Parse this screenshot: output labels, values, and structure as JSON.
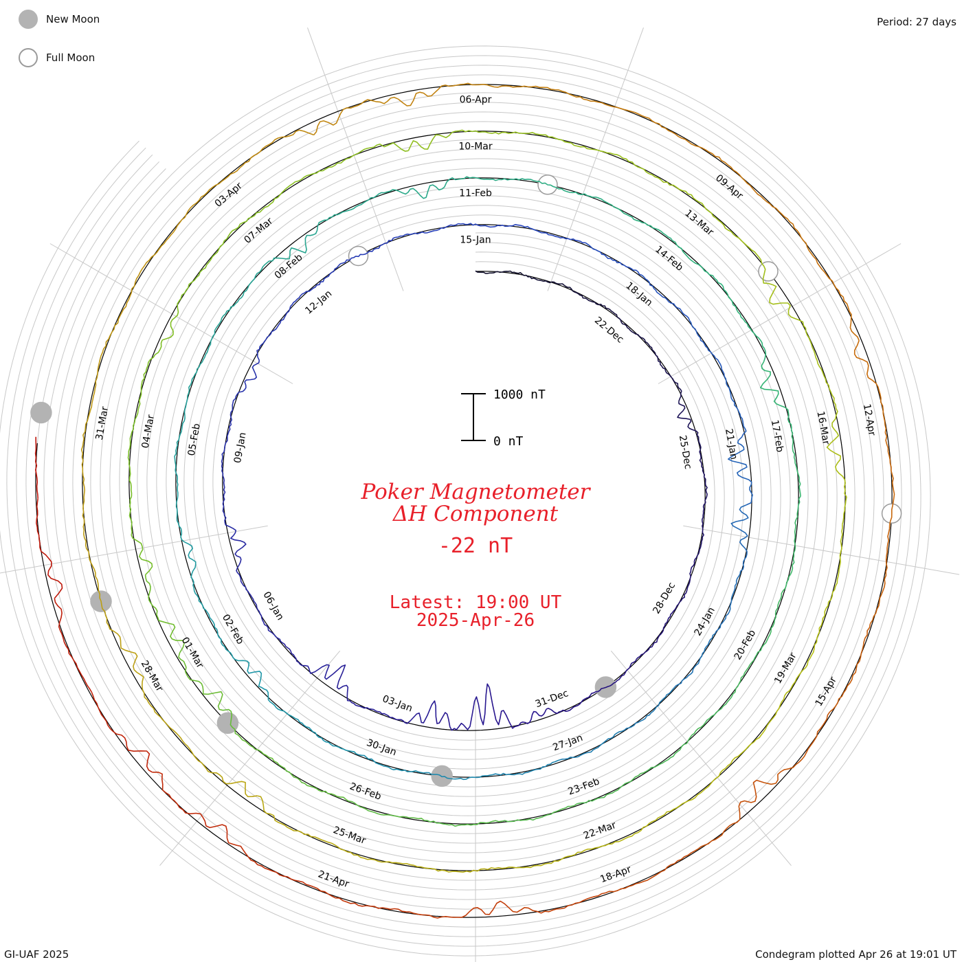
{
  "legend": [
    {
      "label": "New Moon",
      "fill": "#b3b3b3",
      "stroke": "#b3b3b3",
      "icon": "new-moon-icon"
    },
    {
      "label": "Full Moon",
      "fill": "#ffffff",
      "stroke": "#9a9a9a",
      "icon": "full-moon-icon"
    }
  ],
  "period_label": "Period: 27 days",
  "footer_left": "GI-UAF 2025",
  "footer_right": "Condegram plotted Apr 26 at 19:01 UT",
  "scale_bar": {
    "top_label": "1000 nT",
    "bottom_label": "0 nT"
  },
  "title": {
    "line1": "Poker Magnetometer",
    "line2": "ΔH Component",
    "value": "-22 nT",
    "latest": "Latest: 19:00 UT",
    "date": "2025-Apr-26",
    "color": "#e8202a"
  },
  "chart_data": {
    "type": "spiral-line",
    "period_days": 27,
    "start_date": "2024-12-19",
    "end_date": "2025-04-26",
    "yunit": "nT",
    "scale_nT": 1000,
    "date_labels": [
      "22-Dec",
      "25-Dec",
      "28-Dec",
      "31-Dec",
      "03-Jan",
      "06-Jan",
      "09-Jan",
      "12-Jan",
      "15-Jan",
      "18-Jan",
      "21-Jan",
      "24-Jan",
      "27-Jan",
      "30-Jan",
      "02-Feb",
      "05-Feb",
      "08-Feb",
      "11-Feb",
      "14-Feb",
      "17-Feb",
      "20-Feb",
      "23-Feb",
      "26-Feb",
      "01-Mar",
      "04-Mar",
      "07-Mar",
      "10-Mar",
      "13-Mar",
      "16-Mar",
      "19-Mar",
      "22-Mar",
      "25-Mar",
      "28-Mar",
      "31-Mar",
      "03-Apr",
      "06-Apr",
      "09-Apr",
      "12-Apr",
      "15-Apr",
      "18-Apr",
      "21-Apr"
    ],
    "new_moons": [
      "2024-12-30",
      "2025-01-29",
      "2025-02-28",
      "2025-03-29",
      "2025-04-27"
    ],
    "full_moons": [
      "2025-01-13",
      "2025-02-12",
      "2025-03-14",
      "2025-04-13"
    ],
    "disturbance_days": [
      {
        "date": "2024-12-24",
        "peak_nT": 220
      },
      {
        "date": "2024-12-31",
        "peak_nT": 180
      },
      {
        "date": "2025-01-01",
        "peak_nT": 1000
      },
      {
        "date": "2025-01-02",
        "peak_nT": 560
      },
      {
        "date": "2025-01-04",
        "peak_nT": 550
      },
      {
        "date": "2025-01-07",
        "peak_nT": 300
      },
      {
        "date": "2025-01-10",
        "peak_nT": 200
      },
      {
        "date": "2025-01-21",
        "peak_nT": 430
      },
      {
        "date": "2025-01-22",
        "peak_nT": 380
      },
      {
        "date": "2025-02-01",
        "peak_nT": 260
      },
      {
        "date": "2025-02-03",
        "peak_nT": 200
      },
      {
        "date": "2025-02-08",
        "peak_nT": 300
      },
      {
        "date": "2025-02-10",
        "peak_nT": 280
      },
      {
        "date": "2025-02-16",
        "peak_nT": 350
      },
      {
        "date": "2025-02-28",
        "peak_nT": 330
      },
      {
        "date": "2025-03-01",
        "peak_nT": 300
      },
      {
        "date": "2025-03-02",
        "peak_nT": 250
      },
      {
        "date": "2025-03-05",
        "peak_nT": 200
      },
      {
        "date": "2025-03-09",
        "peak_nT": 300
      },
      {
        "date": "2025-03-14",
        "peak_nT": 350
      },
      {
        "date": "2025-03-16",
        "peak_nT": 280
      },
      {
        "date": "2025-03-26",
        "peak_nT": 280
      },
      {
        "date": "2025-03-28",
        "peak_nT": 250
      },
      {
        "date": "2025-04-04",
        "peak_nT": 250
      },
      {
        "date": "2025-04-05",
        "peak_nT": 280
      },
      {
        "date": "2025-04-11",
        "peak_nT": 220
      },
      {
        "date": "2025-04-16",
        "peak_nT": 380
      },
      {
        "date": "2025-04-19",
        "peak_nT": 300
      },
      {
        "date": "2025-04-22",
        "peak_nT": 250
      },
      {
        "date": "2025-04-23",
        "peak_nT": 300
      },
      {
        "date": "2025-04-25",
        "peak_nT": 280
      }
    ]
  }
}
